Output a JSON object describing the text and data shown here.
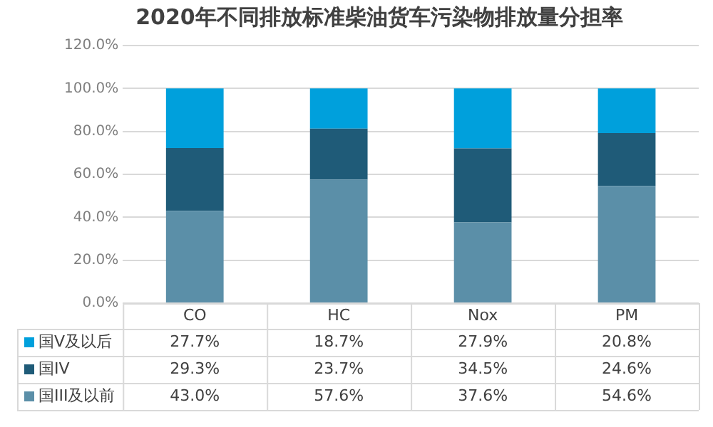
{
  "chart_data": {
    "type": "bar",
    "title": "2020年不同排放标准柴油货车污染物排放量分担率",
    "categories": [
      "CO",
      "HC",
      "Nox",
      "PM"
    ],
    "stacked": true,
    "series": [
      {
        "name": "国III及以前",
        "color": "#5b8fa8",
        "values": [
          43.0,
          57.6,
          37.6,
          54.6
        ],
        "value_labels": [
          "43.0%",
          "57.6%",
          "37.6%",
          "54.6%"
        ]
      },
      {
        "name": "国IV",
        "color": "#1f5b78",
        "values": [
          29.3,
          23.7,
          34.5,
          24.6
        ],
        "value_labels": [
          "29.3%",
          "23.7%",
          "34.5%",
          "24.6%"
        ]
      },
      {
        "name": "国V及以后",
        "color": "#00a0dc",
        "values": [
          27.7,
          18.7,
          27.9,
          20.8
        ],
        "value_labels": [
          "27.7%",
          "18.7%",
          "27.9%",
          "20.8%"
        ]
      }
    ],
    "ylim": [
      0,
      120
    ],
    "yticks": [
      {
        "value": 0,
        "label": "0.0%"
      },
      {
        "value": 20,
        "label": "20.0%"
      },
      {
        "value": 40,
        "label": "40.0%"
      },
      {
        "value": 60,
        "label": "60.0%"
      },
      {
        "value": 80,
        "label": "80.0%"
      },
      {
        "value": 100,
        "label": "100.0%"
      },
      {
        "value": 120,
        "label": "120.0%"
      }
    ],
    "grid": "y",
    "legend": "bottom"
  }
}
